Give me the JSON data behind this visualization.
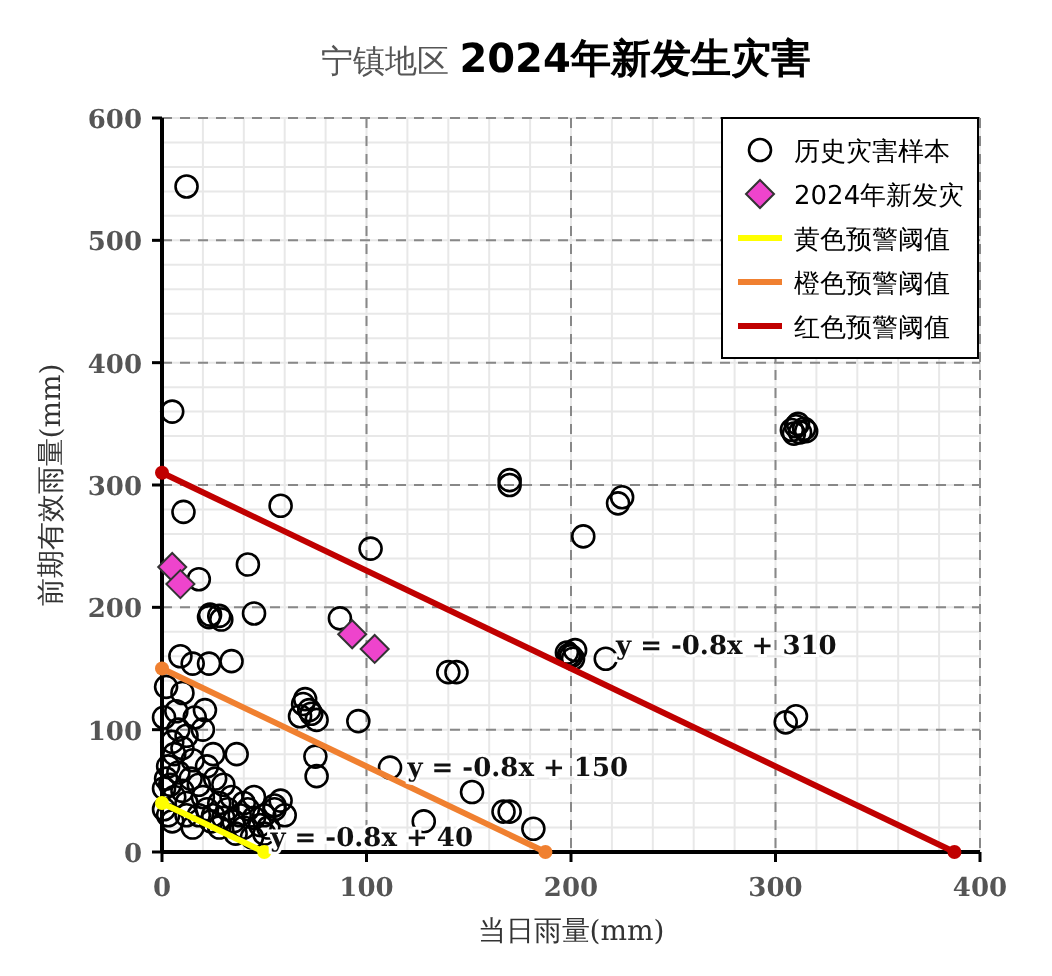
{
  "chart_data": {
    "type": "scatter",
    "title": "宁镇地区",
    "subtitle": "2024年新发生灾害",
    "xlabel": "当日雨量(mm)",
    "ylabel": "前期有效雨量(mm)",
    "xlim": [
      0,
      400
    ],
    "xticks": [
      0,
      100,
      200,
      300,
      400
    ],
    "ylim": [
      0,
      600
    ],
    "yticks": [
      0,
      100,
      200,
      300,
      400,
      500,
      600
    ],
    "grid": true,
    "legend": "top right",
    "series": [
      {
        "name": "历史灾害样本",
        "marker": "circle",
        "color": "#000000",
        "x": [
          12,
          5,
          10.5,
          58,
          42,
          18,
          102,
          170,
          170,
          206,
          23.5,
          28,
          45,
          87,
          308,
          310,
          312,
          314,
          311,
          309,
          315,
          223,
          225,
          198,
          200,
          202,
          201,
          199,
          217,
          310,
          305,
          140,
          144,
          69,
          72,
          67.5,
          75.6,
          70,
          73,
          96,
          75,
          75.6,
          111.5,
          151.6,
          128,
          167,
          170,
          181.6,
          23,
          29,
          9,
          15,
          23,
          34,
          2,
          36.5,
          21,
          2,
          4,
          3,
          6,
          8,
          10,
          12,
          5,
          8,
          10,
          15,
          14,
          18,
          20,
          22,
          25,
          28,
          30,
          32,
          35,
          38,
          40,
          42,
          45,
          48,
          50,
          52,
          55,
          12,
          18,
          3,
          20,
          25,
          16,
          7,
          1,
          26,
          30,
          34,
          22,
          40,
          45,
          55,
          60,
          58,
          10,
          12,
          6,
          24,
          36,
          44,
          50,
          28,
          15,
          5,
          1,
          1
        ],
        "values": [
          544,
          360,
          278,
          283,
          235,
          223,
          248,
          304,
          300,
          258,
          194,
          193,
          195,
          191,
          345,
          348,
          343,
          346,
          350,
          342,
          344,
          285,
          290,
          163,
          160,
          165,
          158,
          161,
          158,
          111,
          106,
          147,
          147,
          121,
          116,
          111,
          108,
          125,
          113,
          107,
          78,
          62,
          69,
          49,
          25,
          33,
          33,
          19,
          192,
          190,
          160,
          154,
          154,
          156,
          135,
          80,
          116,
          60,
          55,
          70,
          45,
          65,
          50,
          40,
          90,
          100,
          85,
          75,
          60,
          55,
          45,
          35,
          30,
          40,
          28,
          35,
          25,
          30,
          20,
          35,
          28,
          22,
          30,
          20,
          35,
          30,
          30,
          30,
          100,
          80,
          110,
          115,
          110,
          60,
          55,
          45,
          70,
          40,
          45,
          38,
          30,
          42,
          130,
          95,
          80,
          25,
          15,
          12,
          15,
          20,
          20,
          25,
          52,
          35
        ]
      },
      {
        "name": "2024年新发灾",
        "marker": "diamond",
        "color": "#ee44cc",
        "x": [
          5,
          9,
          93,
          104
        ],
        "values": [
          233,
          219,
          178,
          166
        ]
      },
      {
        "name": "黄色预警阈值",
        "type": "line",
        "marker": "circle",
        "color": "#ffff00",
        "x": [
          0,
          50
        ],
        "values": [
          40,
          0
        ]
      },
      {
        "name": "橙色预警阈值",
        "type": "line",
        "marker": "circle",
        "color": "#f08030",
        "x": [
          0,
          187.5
        ],
        "values": [
          150,
          0
        ]
      },
      {
        "name": "红色预警阈值",
        "type": "line",
        "marker": "circle",
        "color": "#c00000",
        "x": [
          0,
          387.5
        ],
        "values": [
          310,
          0
        ]
      }
    ],
    "annotations": [
      {
        "text": "y = -0.8x + 40",
        "x": 53,
        "y": 5
      },
      {
        "text": "y = -0.8x + 150",
        "x": 120,
        "y": 62
      },
      {
        "text": "y = -0.8x + 310",
        "x": 222,
        "y": 162
      }
    ]
  }
}
